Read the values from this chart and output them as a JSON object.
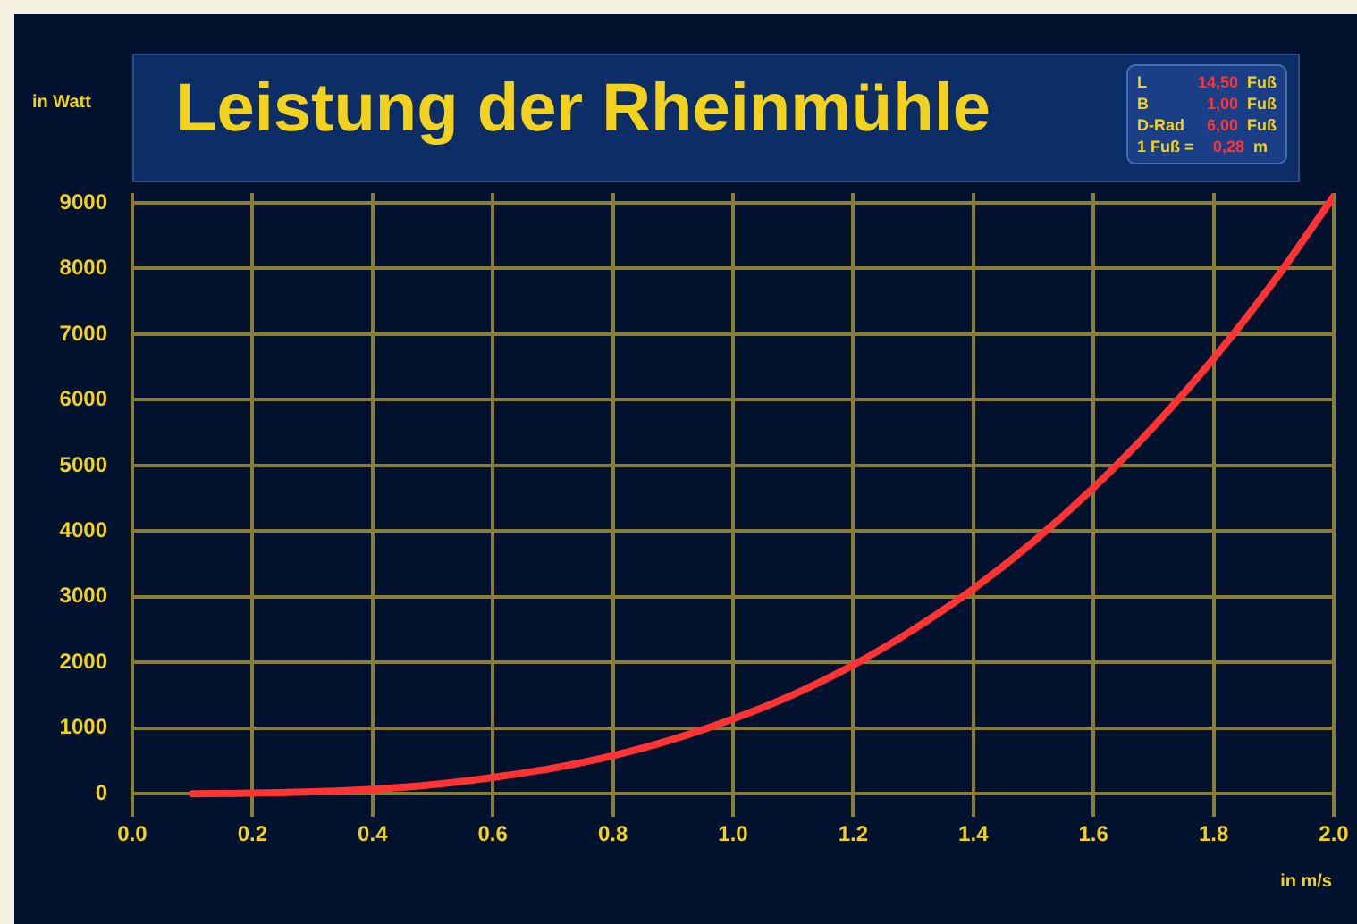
{
  "chart_data": {
    "type": "line",
    "title": "Leistung der Rheinmühle",
    "ylabel": "in Watt",
    "xlabel": "in m/s",
    "annotations": [
      "L 14,50 Fuß",
      "B 1,00 Fuß",
      "D-Rad 6,00 Fuß",
      "1 Fuß = 0,28 m"
    ],
    "x": [
      0.1,
      0.2,
      0.3,
      0.4,
      0.5,
      0.6,
      0.7,
      0.8,
      0.9,
      1.0,
      1.1,
      1.2,
      1.3,
      1.4,
      1.5,
      1.6,
      1.7,
      1.8,
      1.9,
      2.0
    ],
    "series": [
      {
        "color": "#ff3333",
        "values": [
          0,
          10,
          30,
          70,
          140,
          250,
          390,
          580,
          830,
          1140,
          1510,
          1960,
          2500,
          3120,
          3840,
          4660,
          5590,
          6630,
          7800,
          9100
        ]
      }
    ],
    "xlim": [
      0,
      2
    ],
    "xticks": [
      {
        "value": 0,
        "label": "0.0"
      },
      0.2,
      0.4,
      0.6,
      0.8,
      {
        "value": 1,
        "label": "1.0"
      },
      1.2,
      1.4,
      1.6,
      1.8,
      {
        "value": 2,
        "label": "2.0"
      }
    ],
    "ylim": [
      -350,
      9150
    ],
    "yticks": [
      0,
      1000,
      2000,
      3000,
      4000,
      5000,
      6000,
      7000,
      8000,
      9000
    ],
    "grid": true,
    "legend": false,
    "marker": "none",
    "line_style": "solid"
  }
}
